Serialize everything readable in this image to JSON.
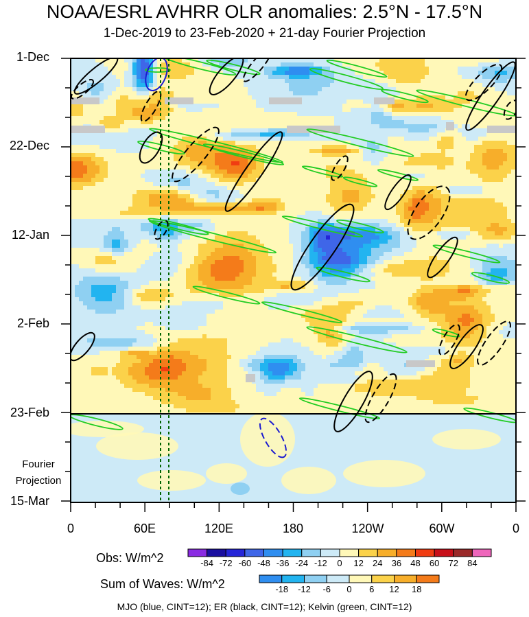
{
  "header": {
    "title": "NOAA/ESRL AVHRR OLR anomalies: 2.5°N - 17.5°N",
    "subtitle": "1-Dec-2019 to 23-Feb-2020 + 21-day Fourier Projection"
  },
  "chart_data": {
    "type": "heatmap",
    "title": "NOAA/ESRL AVHRR OLR anomalies: 2.5°N - 17.5°N",
    "subtitle": "1-Dec-2019 to 23-Feb-2020 + 21-day Fourier Projection",
    "x_ticks": [
      "0",
      "60E",
      "120E",
      "180",
      "120W",
      "60W",
      "0"
    ],
    "y_ticks": [
      "1-Dec",
      "22-Dec",
      "12-Jan",
      "2-Feb",
      "23-Feb",
      "15-Mar"
    ],
    "x_range": [
      "0",
      "0"
    ],
    "y_range": [
      "1-Dec-2019",
      "15-Mar-2020"
    ],
    "projection_label": [
      "Fourier",
      "Projection"
    ],
    "observation_end": "23-Feb",
    "colorbars": [
      {
        "title": "Obs: W/m^2",
        "levels": [
          -84,
          -72,
          -60,
          -48,
          -36,
          -24,
          -12,
          0,
          12,
          24,
          36,
          48,
          60,
          72,
          84
        ],
        "colors": [
          "#8a2be2",
          "#1a0fa0",
          "#2525d8",
          "#3f66e8",
          "#2f8ef0",
          "#22b4f0",
          "#8fd0f2",
          "#cdeaf7",
          "#fff8b8",
          "#fbd24a",
          "#f7ae2a",
          "#f47b1a",
          "#f03c12",
          "#c8101a",
          "#9a2a2a",
          "#ee66bb"
        ]
      },
      {
        "title": "Sum of Waves: W/m^2",
        "levels": [
          -18,
          -12,
          -6,
          0,
          6,
          12,
          18
        ],
        "colors": [
          "#2f8ef0",
          "#22b4f0",
          "#8fd0f2",
          "#cdeaf7",
          "#fff8b8",
          "#fbd24a",
          "#f7ae2a",
          "#f47b1a"
        ]
      }
    ],
    "legend_text": "MJO (blue, CINT=12); ER (black, CINT=12); Kelvin (green, CINT=12)",
    "series": [
      {
        "name": "MJO",
        "color": "#1a1ad0"
      },
      {
        "name": "ER",
        "color": "#000000"
      },
      {
        "name": "Kelvin",
        "color": "#22cc22"
      }
    ],
    "reference_lines": {
      "style": "dotted",
      "color": "#006400",
      "longitudes": [
        "~75E",
        "~82E"
      ]
    }
  }
}
